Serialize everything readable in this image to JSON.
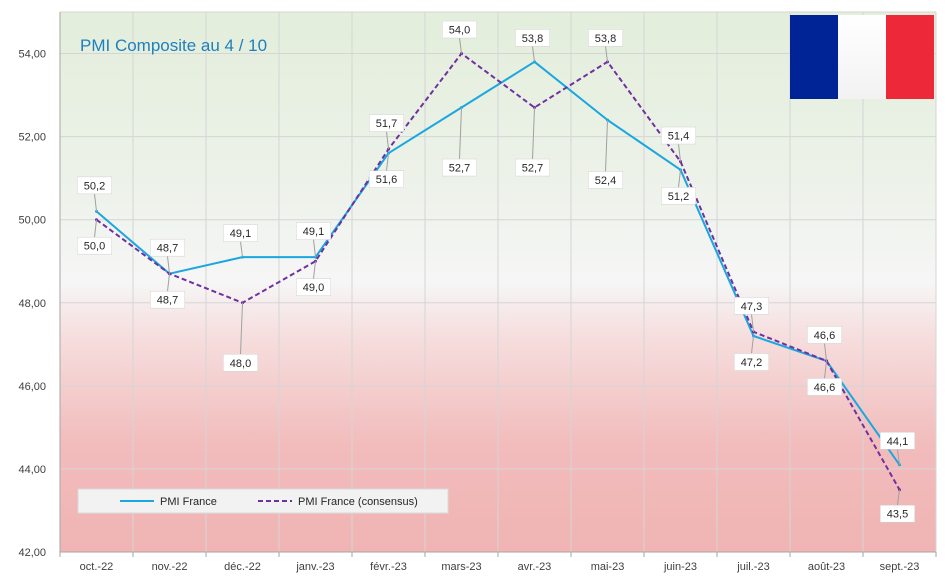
{
  "chart_data": {
    "type": "line",
    "title": "PMI Composite au 4 / 10",
    "categories": [
      "oct.-22",
      "nov.-22",
      "déc.-22",
      "janv.-23",
      "févr.-23",
      "mars-23",
      "avr.-23",
      "mai-23",
      "juin-23",
      "juil.-23",
      "août-23",
      "sept.-23"
    ],
    "ylim": [
      42,
      55
    ],
    "yticks": [
      "42,00",
      "44,00",
      "46,00",
      "48,00",
      "50,00",
      "52,00",
      "54,00"
    ],
    "ytick_values": [
      42,
      44,
      46,
      48,
      50,
      52,
      54
    ],
    "grid": true,
    "legend_position": "bottom-left",
    "series": [
      {
        "name": "PMI France",
        "color": "#1aa7e0",
        "style": "solid",
        "values": [
          50.2,
          48.7,
          49.1,
          49.1,
          51.6,
          52.7,
          53.8,
          52.4,
          51.2,
          47.2,
          46.6,
          44.1
        ],
        "labels": [
          "50,2",
          "48,7",
          "49,1",
          "49,1",
          "51,6",
          "52,7",
          "53,8",
          "52,4",
          "51,2",
          "47,2",
          "46,6",
          "44,1"
        ]
      },
      {
        "name": "PMI France (consensus)",
        "color": "#7030a0",
        "style": "dashed",
        "values": [
          50.0,
          48.7,
          48.0,
          49.0,
          51.7,
          54.0,
          52.7,
          53.8,
          51.4,
          47.3,
          46.6,
          43.5
        ],
        "labels": [
          "50,0",
          "48,7",
          "48,0",
          "49,0",
          "51,7",
          "54,0",
          "52,7",
          "53,8",
          "51,4",
          "47,3",
          "46,6",
          "43,5"
        ]
      }
    ],
    "flag_icon": "france-flag",
    "flag_colors": [
      "#002395",
      "#ffffff",
      "#ed2939"
    ]
  }
}
